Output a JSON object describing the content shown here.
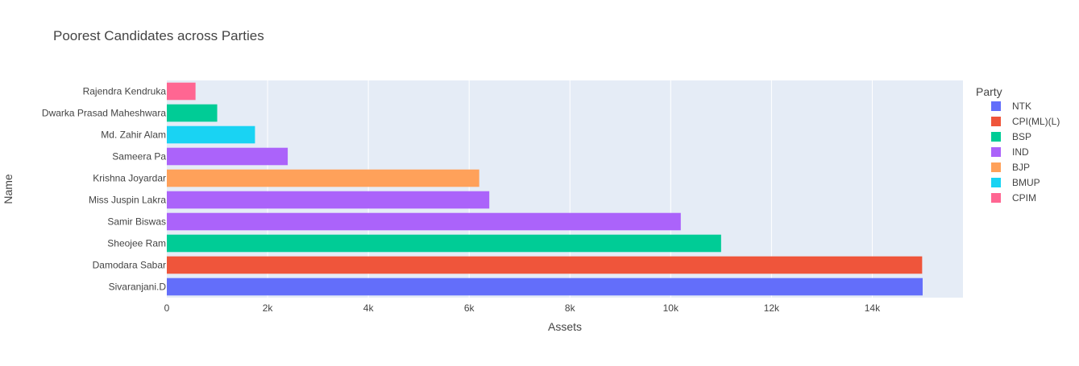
{
  "chart_data": {
    "type": "bar",
    "orientation": "horizontal",
    "title": "Poorest Candidates across Parties",
    "xlabel": "Assets",
    "ylabel": "Name",
    "xlim": [
      0,
      15800
    ],
    "x_ticks": [
      0,
      2000,
      4000,
      6000,
      8000,
      10000,
      12000,
      14000
    ],
    "x_tick_labels": [
      "0",
      "2k",
      "4k",
      "6k",
      "8k",
      "10k",
      "12k",
      "14k"
    ],
    "grid": true,
    "legend_position": "right",
    "legend_title": "Party",
    "legend": [
      {
        "name": "NTK",
        "color": "#636efa"
      },
      {
        "name": "CPI(ML)(L)",
        "color": "#ef553b"
      },
      {
        "name": "BSP",
        "color": "#00cc96"
      },
      {
        "name": "IND",
        "color": "#ab63fa"
      },
      {
        "name": "BJP",
        "color": "#ffa15a"
      },
      {
        "name": "BMUP",
        "color": "#19d3f3"
      },
      {
        "name": "CPIM",
        "color": "#ff6692"
      }
    ],
    "categories": [
      "Sivaranjani.D",
      "Damodara Sabar",
      "Sheojee Ram",
      "Samir Biswas",
      "Miss Juspin Lakra",
      "Krishna Joyardar",
      "Sameera Pa",
      "Md. Zahir Alam",
      "Dwarka Prasad Maheshwara",
      "Rajendra Kendruka"
    ],
    "bars": [
      {
        "name": "Sivaranjani.D",
        "value": 15000,
        "party": "NTK"
      },
      {
        "name": "Damodara Sabar",
        "value": 14990,
        "party": "CPI(ML)(L)"
      },
      {
        "name": "Sheojee Ram",
        "value": 11000,
        "party": "BSP"
      },
      {
        "name": "Samir Biswas",
        "value": 10200,
        "party": "IND"
      },
      {
        "name": "Miss Juspin Lakra",
        "value": 6400,
        "party": "IND"
      },
      {
        "name": "Krishna Joyardar",
        "value": 6200,
        "party": "BJP"
      },
      {
        "name": "Sameera Pa",
        "value": 2400,
        "party": "IND"
      },
      {
        "name": "Md. Zahir Alam",
        "value": 1750,
        "party": "BMUP"
      },
      {
        "name": "Dwarka Prasad Maheshwara",
        "value": 1000,
        "party": "BSP"
      },
      {
        "name": "Rajendra Kendruka",
        "value": 570,
        "party": "CPIM"
      }
    ],
    "colors": {
      "plot_background": "#e5ecf6",
      "gridline": "#ffffff",
      "text": "#444444"
    }
  }
}
